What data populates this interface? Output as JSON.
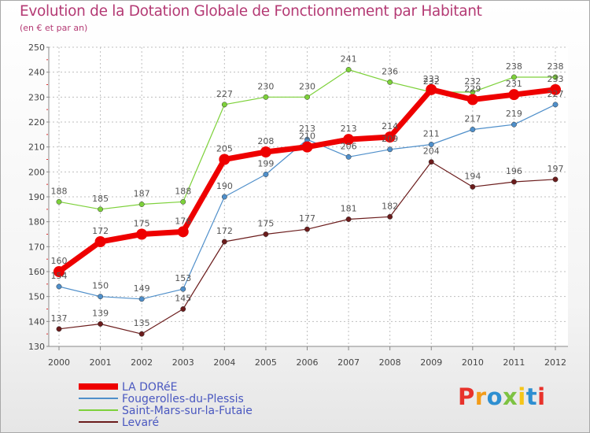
{
  "header": {
    "title": "Evolution de la Dotation Globale de Fonctionnement par Habitant",
    "subtitle": "(en € et par an)"
  },
  "logo": {
    "text": "Proxiti",
    "colors": [
      "#e8322b",
      "#f39c1a",
      "#2e8fd1",
      "#7dc242",
      "#f5c518",
      "#2e8fd1",
      "#e8322b"
    ]
  },
  "chart_data": {
    "type": "line",
    "title": "Evolution de la Dotation Globale de Fonctionnement par Habitant",
    "subtitle": "(en € et par an)",
    "xlabel": "",
    "ylabel": "",
    "x": [
      "2000",
      "2001",
      "2002",
      "2003",
      "2004",
      "2005",
      "2006",
      "2007",
      "2008",
      "2009",
      "2010",
      "2011",
      "2012"
    ],
    "ylim": [
      130,
      250
    ],
    "yticks": [
      130,
      140,
      150,
      160,
      170,
      180,
      190,
      200,
      210,
      220,
      230,
      240,
      250
    ],
    "grid": true,
    "legend": "bottom-left",
    "series": [
      {
        "name": "LA DORéE",
        "color": "#ee0000",
        "emphasis": true,
        "values": [
          160,
          172,
          175,
          176,
          205,
          208,
          210,
          213,
          214,
          233,
          229,
          231,
          233
        ],
        "labels": [
          "160",
          "172",
          "175",
          "176",
          "205",
          "208",
          "210",
          "213",
          "214",
          "233",
          "229",
          "231",
          "233"
        ]
      },
      {
        "name": "Fougerolles-du-Plessis",
        "color": "#4f8fca",
        "emphasis": false,
        "values": [
          154,
          150,
          149,
          153,
          190,
          199,
          213,
          206,
          209,
          211,
          217,
          219,
          227
        ],
        "labels": [
          "154",
          "150",
          "149",
          "153",
          "190",
          "199",
          "213",
          "206",
          "209",
          "211",
          "217",
          "219",
          "227"
        ]
      },
      {
        "name": "Saint-Mars-sur-la-Futaie",
        "color": "#7dd13a",
        "emphasis": false,
        "values": [
          188,
          185,
          187,
          188,
          227,
          230,
          230,
          241,
          236,
          232,
          232,
          238,
          238
        ],
        "labels": [
          "188",
          "185",
          "187",
          "188",
          "227",
          "230",
          "230",
          "241",
          "236",
          "232",
          "232",
          "238",
          "238"
        ]
      },
      {
        "name": "Levaré",
        "color": "#6b1c1c",
        "emphasis": false,
        "values": [
          137,
          139,
          135,
          145,
          172,
          175,
          177,
          181,
          182,
          204,
          194,
          196,
          197
        ],
        "labels": [
          "137",
          "139",
          "135",
          "145",
          "172",
          "175",
          "177",
          "181",
          "182",
          "204",
          "194",
          "196",
          "197"
        ]
      }
    ]
  }
}
